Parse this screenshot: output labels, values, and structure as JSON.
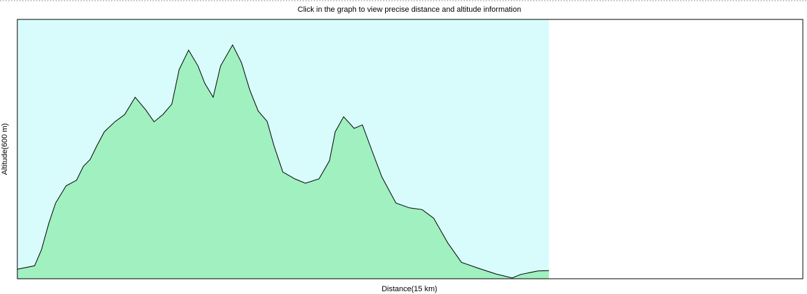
{
  "chart_data": {
    "type": "area",
    "title": "Click in the graph to view precise distance and altitude information",
    "x_label": "Distance(15 km)",
    "y_label": "Altitude(600 m)",
    "x": [
      0,
      0.33,
      0.46,
      0.6,
      0.73,
      0.93,
      1.13,
      1.26,
      1.39,
      1.52,
      1.66,
      1.86,
      2.05,
      2.25,
      2.45,
      2.61,
      2.78,
      2.95,
      3.09,
      3.27,
      3.45,
      3.58,
      3.74,
      3.88,
      4.11,
      4.28,
      4.44,
      4.6,
      4.77,
      4.9,
      5.07,
      5.3,
      5.5,
      5.76,
      5.96,
      6.07,
      6.23,
      6.43,
      6.59,
      6.76,
      6.96,
      7.23,
      7.49,
      7.73,
      7.95,
      8.22,
      8.48,
      8.81,
      9.14,
      9.45,
      9.61,
      9.94,
      10.15
    ],
    "values": [
      22,
      30,
      67,
      128,
      175,
      215,
      228,
      260,
      276,
      308,
      340,
      363,
      380,
      420,
      391,
      363,
      380,
      404,
      484,
      529,
      492,
      452,
      420,
      492,
      541,
      500,
      436,
      388,
      364,
      308,
      247,
      231,
      221,
      231,
      273,
      340,
      375,
      348,
      356,
      300,
      236,
      175,
      164,
      160,
      140,
      83,
      38,
      24,
      11,
      2,
      10,
      18,
      19
    ],
    "color": "#a0f0c0",
    "line_color": "#000000",
    "plot_background": "#d8fcfc",
    "xlim": [
      0,
      15
    ],
    "ylim": [
      0,
      600
    ]
  }
}
